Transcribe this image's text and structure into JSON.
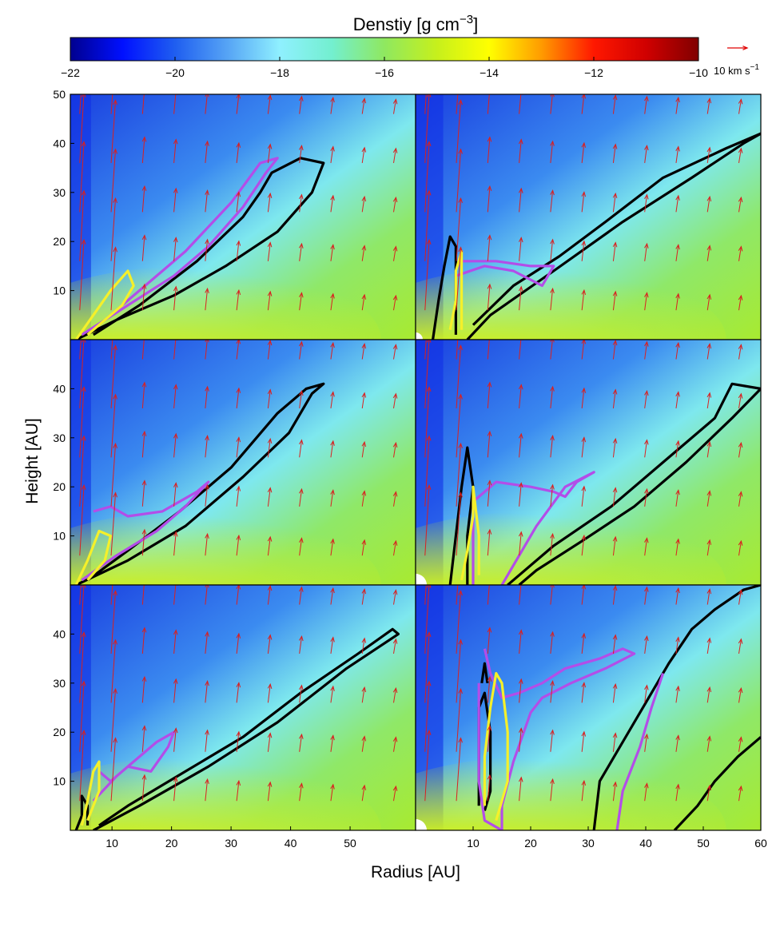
{
  "colorbar": {
    "title": "Denstiy [g cm",
    "title_exp": "−3",
    "title_close": "]",
    "ticks": [
      "−22",
      "−20",
      "−18",
      "−16",
      "−14",
      "−12",
      "−10"
    ],
    "range": [
      -22,
      -10
    ],
    "stops": [
      {
        "v": -22,
        "c": "#00008f"
      },
      {
        "v": -21,
        "c": "#0010ff"
      },
      {
        "v": -20,
        "c": "#1f5ef0"
      },
      {
        "v": -19,
        "c": "#56a4f5"
      },
      {
        "v": -18,
        "c": "#8ff0ff"
      },
      {
        "v": -17,
        "c": "#73efcf"
      },
      {
        "v": -16,
        "c": "#8fe860"
      },
      {
        "v": -15,
        "c": "#c6f01c"
      },
      {
        "v": -14,
        "c": "#ffff00"
      },
      {
        "v": -13,
        "c": "#ff9b00"
      },
      {
        "v": -12,
        "c": "#ff1800"
      },
      {
        "v": -11,
        "c": "#d00000"
      },
      {
        "v": -10,
        "c": "#800000"
      }
    ]
  },
  "velocity_key": {
    "label": "10 km s",
    "exp": "−1",
    "color": "#e00000"
  },
  "axes": {
    "xlabel": "Radius [AU]",
    "ylabel": "Height [AU]",
    "left_xticks": [
      "10",
      "20",
      "30",
      "40",
      "50"
    ],
    "right_xticks": [
      "10",
      "20",
      "30",
      "40",
      "50",
      "60"
    ],
    "top_yticks": [
      "10",
      "20",
      "30",
      "40",
      "50"
    ],
    "yticks": [
      "10",
      "20",
      "30",
      "40"
    ]
  },
  "chart_data": [
    {
      "type": "heatmap",
      "row": 0,
      "col": 0,
      "xlim": [
        0,
        60
      ],
      "ylim": [
        0,
        50
      ],
      "colorbar_range": [
        -22,
        -10
      ],
      "contours": {
        "black": [
          [
            [
              1,
              0
            ],
            [
              8,
              4
            ],
            [
              18,
              9
            ],
            [
              27,
              15
            ],
            [
              36,
              22
            ],
            [
              42,
              30
            ],
            [
              44,
              36
            ],
            [
              40,
              37
            ],
            [
              35,
              34
            ],
            [
              33,
              30
            ],
            [
              30,
              25
            ],
            [
              22,
              16
            ],
            [
              12,
              7
            ],
            [
              4,
              1
            ]
          ]
        ],
        "magenta": [
          [
            [
              2,
              1
            ],
            [
              10,
              7
            ],
            [
              18,
              13
            ],
            [
              24,
              19
            ],
            [
              30,
              27
            ],
            [
              34,
              34
            ],
            [
              36,
              37
            ],
            [
              33,
              36
            ],
            [
              28,
              28
            ],
            [
              20,
              18
            ],
            [
              12,
              10
            ],
            [
              5,
              3
            ]
          ]
        ],
        "yellow": [
          [
            [
              1,
              0
            ],
            [
              4,
              5
            ],
            [
              7,
              10
            ],
            [
              10,
              14
            ],
            [
              11,
              11
            ],
            [
              9,
              7
            ],
            [
              6,
              4
            ],
            [
              3,
              1
            ]
          ]
        ]
      }
    },
    {
      "type": "heatmap",
      "row": 0,
      "col": 1,
      "xlim": [
        0,
        60
      ],
      "ylim": [
        0,
        50
      ],
      "colorbar_range": [
        -22,
        -10
      ],
      "contours": {
        "black": [
          [
            [
              3,
              0
            ],
            [
              4,
              8
            ],
            [
              5,
              15
            ],
            [
              6,
              21
            ],
            [
              7,
              19
            ],
            [
              7,
              10
            ],
            [
              7,
              1
            ]
          ],
          [
            [
              9,
              0
            ],
            [
              13,
              5
            ],
            [
              24,
              14
            ],
            [
              36,
              24
            ],
            [
              48,
              33
            ],
            [
              57,
              40
            ],
            [
              60,
              42
            ],
            [
              54,
              39
            ],
            [
              43,
              33
            ],
            [
              33,
              24
            ],
            [
              25,
              17
            ],
            [
              17,
              11
            ],
            [
              10,
              3
            ]
          ]
        ],
        "magenta": [
          [
            [
              7,
              13
            ],
            [
              12,
              15
            ],
            [
              17,
              14
            ],
            [
              22,
              11
            ],
            [
              24,
              15
            ],
            [
              20,
              15
            ],
            [
              14,
              16
            ],
            [
              8,
              16
            ]
          ]
        ],
        "yellow": [
          [
            [
              6,
              2
            ],
            [
              7,
              8
            ],
            [
              7,
              14
            ],
            [
              8,
              18
            ],
            [
              8,
              10
            ],
            [
              8,
              2
            ]
          ]
        ]
      }
    },
    {
      "type": "heatmap",
      "row": 1,
      "col": 0,
      "xlim": [
        0,
        60
      ],
      "ylim": [
        0,
        50
      ],
      "colorbar_range": [
        -22,
        -10
      ],
      "contours": {
        "black": [
          [
            [
              1,
              0
            ],
            [
              10,
              5
            ],
            [
              20,
              12
            ],
            [
              30,
              22
            ],
            [
              38,
              31
            ],
            [
              42,
              39
            ],
            [
              44,
              41
            ],
            [
              41,
              40
            ],
            [
              36,
              35
            ],
            [
              28,
              24
            ],
            [
              19,
              15
            ],
            [
              10,
              7
            ],
            [
              3,
              1
            ]
          ]
        ],
        "magenta": [
          [
            [
              2,
              1
            ],
            [
              8,
              6
            ],
            [
              15,
              11
            ],
            [
              20,
              16
            ],
            [
              24,
              21
            ],
            [
              22,
              19
            ],
            [
              16,
              15
            ],
            [
              10,
              14
            ],
            [
              7,
              16
            ],
            [
              4,
              15
            ]
          ]
        ],
        "yellow": [
          [
            [
              1,
              0
            ],
            [
              3,
              5
            ],
            [
              5,
              11
            ],
            [
              7,
              10
            ],
            [
              6,
              5
            ],
            [
              3,
              1
            ]
          ]
        ]
      }
    },
    {
      "type": "heatmap",
      "row": 1,
      "col": 1,
      "xlim": [
        0,
        60
      ],
      "ylim": [
        0,
        50
      ],
      "colorbar_range": [
        -22,
        -10
      ],
      "contours": {
        "black": [
          [
            [
              6,
              0
            ],
            [
              7,
              10
            ],
            [
              8,
              20
            ],
            [
              9,
              28
            ],
            [
              10,
              20
            ],
            [
              9,
              10
            ],
            [
              9,
              0
            ]
          ],
          [
            [
              16,
              0
            ],
            [
              24,
              8
            ],
            [
              34,
              16
            ],
            [
              44,
              26
            ],
            [
              52,
              34
            ],
            [
              55,
              41
            ],
            [
              60,
              40
            ],
            [
              55,
              34
            ],
            [
              47,
              25
            ],
            [
              38,
              16
            ],
            [
              29,
              9
            ],
            [
              21,
              3
            ],
            [
              18,
              0
            ]
          ]
        ],
        "magenta": [
          [
            [
              10,
              0
            ],
            [
              10,
              10
            ],
            [
              10,
              17
            ],
            [
              14,
              21
            ],
            [
              20,
              20
            ],
            [
              24,
              19
            ],
            [
              26,
              18
            ],
            [
              28,
              21
            ],
            [
              31,
              23
            ],
            [
              26,
              20
            ],
            [
              21,
              12
            ],
            [
              18,
              6
            ],
            [
              15,
              0
            ]
          ]
        ],
        "yellow": [
          [
            [
              8,
              1
            ],
            [
              9,
              7
            ],
            [
              10,
              14
            ],
            [
              10,
              20
            ],
            [
              11,
              10
            ],
            [
              11,
              2
            ]
          ]
        ]
      }
    },
    {
      "type": "heatmap",
      "row": 2,
      "col": 0,
      "xlim": [
        0,
        60
      ],
      "ylim": [
        0,
        50
      ],
      "colorbar_range": [
        -22,
        -10
      ],
      "contours": {
        "black": [
          [
            [
              1,
              0
            ],
            [
              2,
              3
            ],
            [
              2,
              7
            ],
            [
              3,
              5
            ],
            [
              3,
              1
            ]
          ],
          [
            [
              4,
              0
            ],
            [
              12,
              5
            ],
            [
              24,
              13
            ],
            [
              36,
              22
            ],
            [
              48,
              33
            ],
            [
              57,
              40
            ],
            [
              56,
              41
            ],
            [
              50,
              36
            ],
            [
              40,
              28
            ],
            [
              30,
              19
            ],
            [
              20,
              12
            ],
            [
              10,
              5
            ],
            [
              5,
              1
            ]
          ]
        ],
        "magenta": [
          [
            [
              4,
              6
            ],
            [
              8,
              11
            ],
            [
              12,
              15
            ],
            [
              15,
              18
            ],
            [
              18,
              20
            ],
            [
              17,
              17
            ],
            [
              14,
              12
            ],
            [
              10,
              13
            ],
            [
              7,
              10
            ],
            [
              5,
              12
            ]
          ]
        ],
        "yellow": [
          [
            [
              2,
              1
            ],
            [
              3,
              6
            ],
            [
              4,
              12
            ],
            [
              5,
              14
            ],
            [
              5,
              8
            ],
            [
              3,
              2
            ]
          ]
        ]
      }
    },
    {
      "type": "heatmap",
      "row": 2,
      "col": 1,
      "xlim": [
        0,
        60
      ],
      "ylim": [
        0,
        50
      ],
      "colorbar_range": [
        -22,
        -10
      ],
      "contours": {
        "black": [
          [
            [
              11,
              5
            ],
            [
              11,
              15
            ],
            [
              11,
              25
            ],
            [
              12,
              28
            ],
            [
              13,
              20
            ],
            [
              13,
              8
            ],
            [
              12,
              4
            ]
          ],
          [
            [
              11.5,
              30
            ],
            [
              12,
              34
            ],
            [
              12.5,
              30
            ]
          ],
          [
            [
              31,
              0
            ],
            [
              32,
              10
            ],
            [
              36,
              18
            ],
            [
              40,
              26
            ],
            [
              44,
              34
            ],
            [
              48,
              41
            ],
            [
              52,
              45
            ],
            [
              57,
              49
            ],
            [
              60,
              50
            ]
          ],
          [
            [
              45,
              0
            ],
            [
              49,
              5
            ],
            [
              52,
              10
            ],
            [
              56,
              15
            ],
            [
              60,
              19
            ]
          ]
        ],
        "magenta": [
          [
            [
              12,
              37
            ],
            [
              13,
              32
            ],
            [
              15,
              27
            ],
            [
              18,
              28
            ],
            [
              22,
              30
            ],
            [
              26,
              33
            ],
            [
              32,
              35
            ],
            [
              36,
              37
            ],
            [
              38,
              36
            ],
            [
              33,
              33
            ],
            [
              27,
              30
            ],
            [
              22,
              27
            ],
            [
              20,
              24
            ],
            [
              17,
              14
            ],
            [
              15,
              5
            ],
            [
              15,
              0
            ],
            [
              12,
              2
            ],
            [
              11,
              10
            ],
            [
              11,
              20
            ],
            [
              11,
              30
            ]
          ],
          [
            [
              35,
              0
            ],
            [
              36,
              8
            ],
            [
              39,
              17
            ],
            [
              41,
              25
            ],
            [
              43,
              32
            ]
          ]
        ],
        "yellow": [
          [
            [
              12,
              5
            ],
            [
              12,
              15
            ],
            [
              13,
              25
            ],
            [
              14,
              32
            ],
            [
              15,
              30
            ],
            [
              16,
              20
            ],
            [
              16,
              10
            ],
            [
              14,
              2
            ]
          ]
        ]
      }
    }
  ]
}
